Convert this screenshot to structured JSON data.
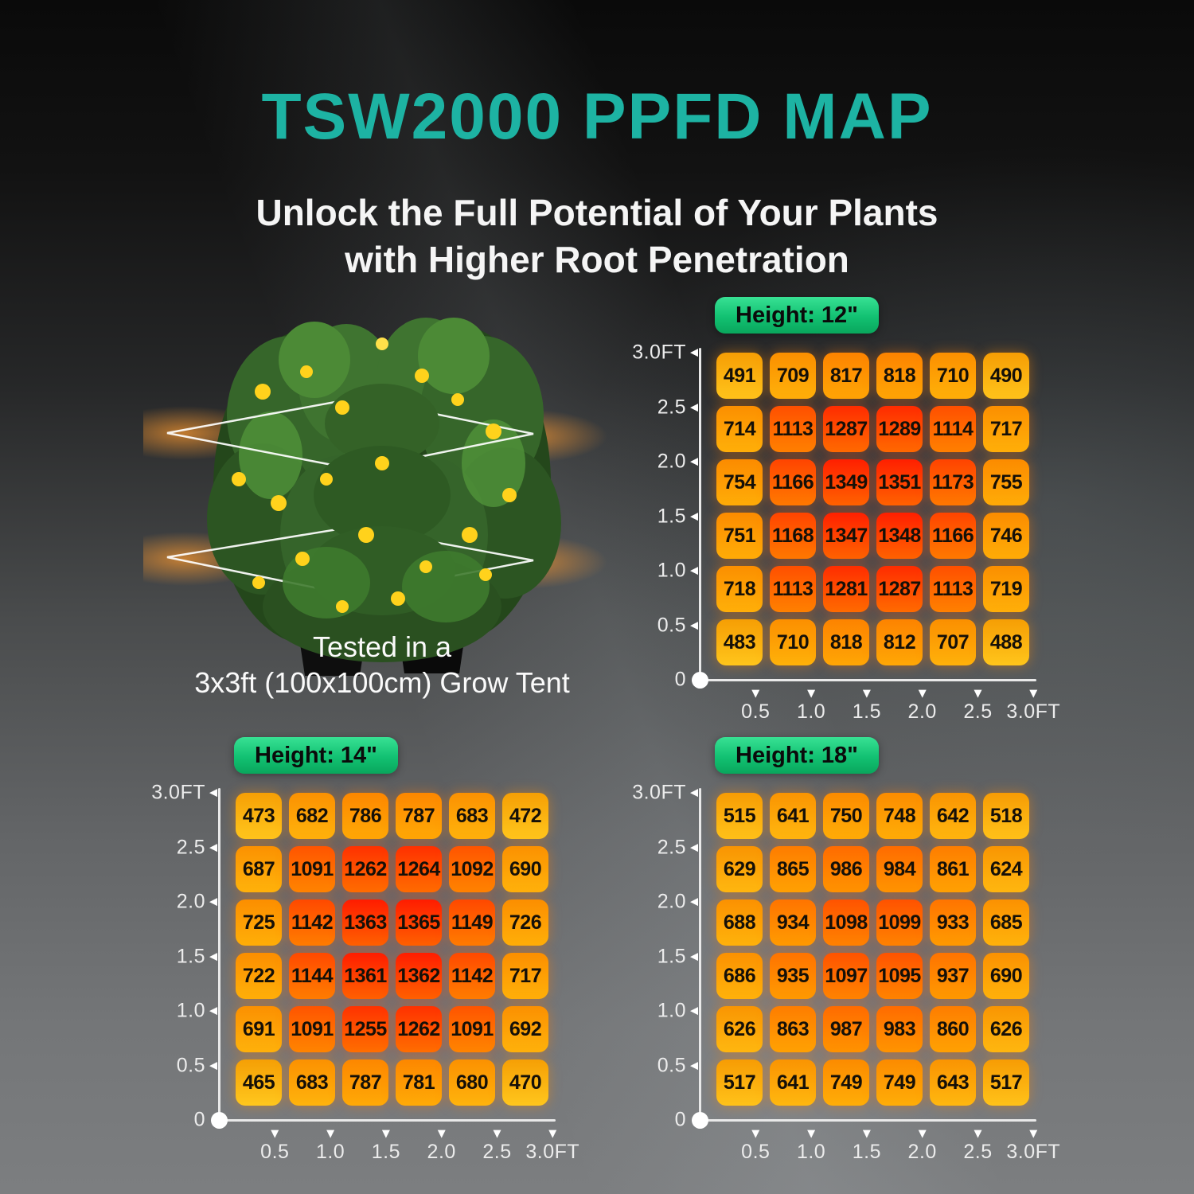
{
  "page": {
    "title": "TSW2000 PPFD MAP",
    "subtitle_line1": "Unlock the Full Potential of Your Plants",
    "subtitle_line2": "with Higher Root Penetration",
    "caption_line1": "Tested in a",
    "caption_line2": "3x3ft (100x100cm) Grow Tent"
  },
  "colors": {
    "title_teal": "#1db3a3",
    "badge_green_top": "#38e194",
    "badge_green_bottom": "#09a65c",
    "heat_low": "#ffc20a",
    "heat_mid": "#ff7300",
    "heat_high": "#ff1e00",
    "axis_color": "#ececec",
    "glow_orange": "#ff9a2e"
  },
  "chart_data": [
    {
      "type": "heatmap",
      "title": "Height: 12\"",
      "x_ticks": [
        "0.5",
        "1.0",
        "1.5",
        "2.0",
        "2.5",
        "3.0FT"
      ],
      "y_ticks": [
        "3.0FT",
        "2.5",
        "2.0",
        "1.5",
        "1.0",
        "0.5",
        "0"
      ],
      "x_range_ft": [
        0,
        3
      ],
      "y_range_ft": [
        0,
        3
      ],
      "values": [
        [
          491,
          709,
          817,
          818,
          710,
          490
        ],
        [
          714,
          1113,
          1287,
          1289,
          1114,
          717
        ],
        [
          754,
          1166,
          1349,
          1351,
          1173,
          755
        ],
        [
          751,
          1168,
          1347,
          1348,
          1166,
          746
        ],
        [
          718,
          1113,
          1281,
          1287,
          1113,
          719
        ],
        [
          483,
          710,
          818,
          812,
          707,
          488
        ]
      ]
    },
    {
      "type": "heatmap",
      "title": "Height: 14\"",
      "x_ticks": [
        "0.5",
        "1.0",
        "1.5",
        "2.0",
        "2.5",
        "3.0FT"
      ],
      "y_ticks": [
        "3.0FT",
        "2.5",
        "2.0",
        "1.5",
        "1.0",
        "0.5",
        "0"
      ],
      "x_range_ft": [
        0,
        3
      ],
      "y_range_ft": [
        0,
        3
      ],
      "values": [
        [
          473,
          682,
          786,
          787,
          683,
          472
        ],
        [
          687,
          1091,
          1262,
          1264,
          1092,
          690
        ],
        [
          725,
          1142,
          1363,
          1365,
          1149,
          726
        ],
        [
          722,
          1144,
          1361,
          1362,
          1142,
          717
        ],
        [
          691,
          1091,
          1255,
          1262,
          1091,
          692
        ],
        [
          465,
          683,
          787,
          781,
          680,
          470
        ]
      ]
    },
    {
      "type": "heatmap",
      "title": "Height: 18\"",
      "x_ticks": [
        "0.5",
        "1.0",
        "1.5",
        "2.0",
        "2.5",
        "3.0FT"
      ],
      "y_ticks": [
        "3.0FT",
        "2.5",
        "2.0",
        "1.5",
        "1.0",
        "0.5",
        "0"
      ],
      "x_range_ft": [
        0,
        3
      ],
      "y_range_ft": [
        0,
        3
      ],
      "values": [
        [
          515,
          641,
          750,
          748,
          642,
          518
        ],
        [
          629,
          865,
          986,
          984,
          861,
          624
        ],
        [
          688,
          934,
          1098,
          1099,
          933,
          685
        ],
        [
          686,
          935,
          1097,
          1095,
          937,
          690
        ],
        [
          626,
          863,
          987,
          983,
          860,
          626
        ],
        [
          517,
          641,
          749,
          749,
          643,
          517
        ]
      ]
    }
  ]
}
